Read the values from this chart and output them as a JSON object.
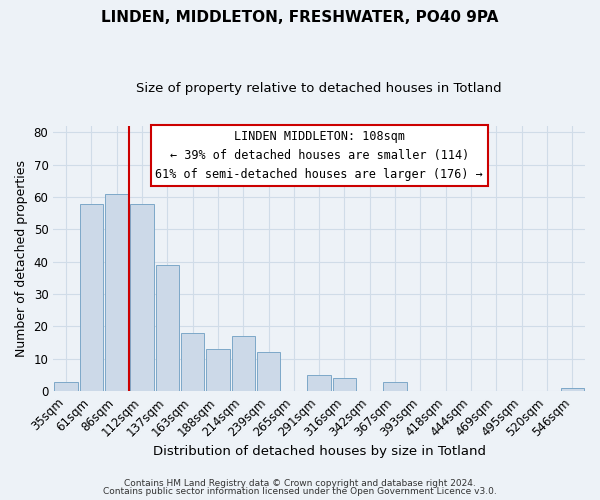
{
  "title": "LINDEN, MIDDLETON, FRESHWATER, PO40 9PA",
  "subtitle": "Size of property relative to detached houses in Totland",
  "xlabel": "Distribution of detached houses by size in Totland",
  "ylabel": "Number of detached properties",
  "bar_labels": [
    "35sqm",
    "61sqm",
    "86sqm",
    "112sqm",
    "137sqm",
    "163sqm",
    "188sqm",
    "214sqm",
    "239sqm",
    "265sqm",
    "291sqm",
    "316sqm",
    "342sqm",
    "367sqm",
    "393sqm",
    "418sqm",
    "444sqm",
    "469sqm",
    "495sqm",
    "520sqm",
    "546sqm"
  ],
  "bar_values": [
    3,
    58,
    61,
    58,
    39,
    18,
    13,
    17,
    12,
    0,
    5,
    4,
    0,
    3,
    0,
    0,
    0,
    0,
    0,
    0,
    1
  ],
  "bar_color": "#ccd9e8",
  "bar_edge_color": "#7da8c8",
  "vline_color": "#cc0000",
  "ylim": [
    0,
    82
  ],
  "yticks": [
    0,
    10,
    20,
    30,
    40,
    50,
    60,
    70,
    80
  ],
  "annotation_title": "LINDEN MIDDLETON: 108sqm",
  "annotation_line1": "← 39% of detached houses are smaller (114)",
  "annotation_line2": "61% of semi-detached houses are larger (176) →",
  "footer1": "Contains HM Land Registry data © Crown copyright and database right 2024.",
  "footer2": "Contains public sector information licensed under the Open Government Licence v3.0.",
  "grid_color": "#d0dce8",
  "background_color": "#edf2f7",
  "annotation_box_edgecolor": "#cc0000",
  "annotation_box_facecolor": "#ffffff",
  "vline_x_index": 2.5
}
